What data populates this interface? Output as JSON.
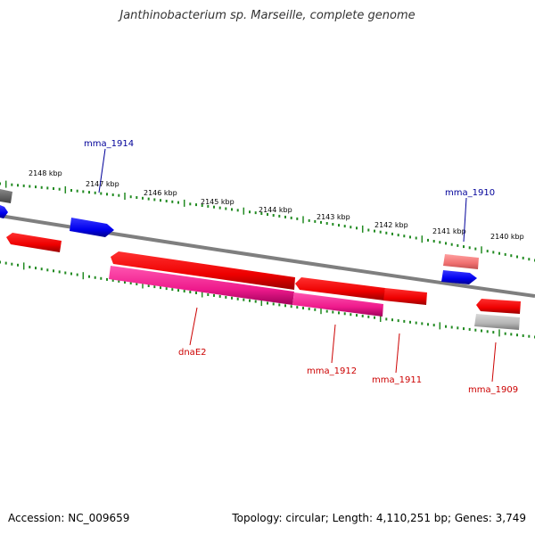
{
  "title": "Janthinobacterium sp. Marseille, complete genome",
  "footer": {
    "accession": "Accession: NC_009659",
    "stats": "Topology: circular; Length: 4,110,251 bp; Genes: 3,749"
  },
  "scale_labels": [
    "2148 kbp",
    "2147 kbp",
    "2146 kbp",
    "2145 kbp",
    "2144 kbp",
    "2143 kbp",
    "2142 kbp",
    "2141 kbp",
    "2140 kbp"
  ],
  "gene_labels": {
    "mma_1914": "mma_1914",
    "mma_1910": "mma_1910",
    "dnaE2": "dnaE2",
    "mma_1912": "mma_1912",
    "mma_1911": "mma_1911",
    "mma_1909": "mma_1909"
  },
  "colors": {
    "backbone": "#7f7f7f",
    "tick": "#228b22",
    "forward_gene": "#0000ff",
    "reverse_gene": "#ff0000",
    "rna_feature": "#ff1493",
    "forward_label": "#000099",
    "reverse_label": "#cc0000"
  }
}
